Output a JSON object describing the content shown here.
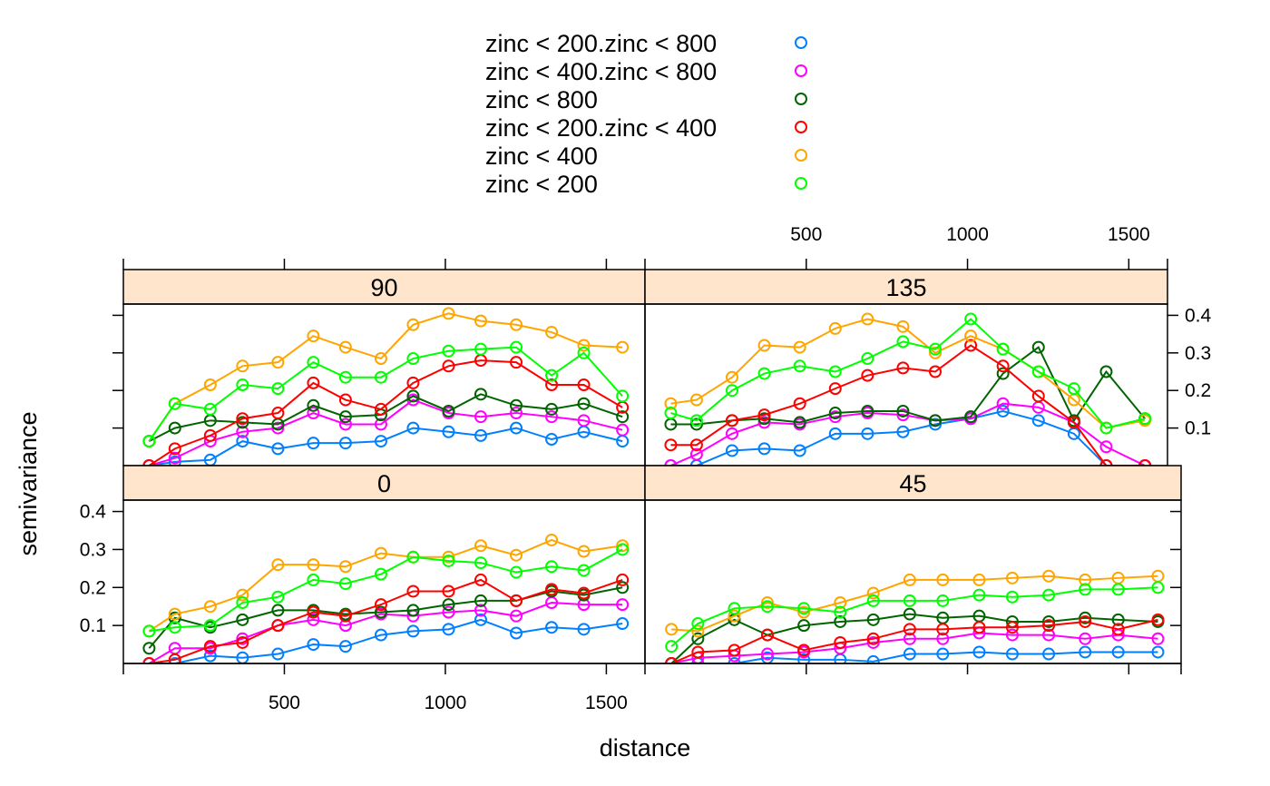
{
  "chart_data": {
    "type": "line",
    "xlabel": "distance",
    "ylabel": "semivariance",
    "xlim": [
      0,
      1620
    ],
    "ylim": [
      0,
      0.43
    ],
    "x_ticks": [
      500,
      1000,
      1500
    ],
    "y_ticks": [
      0.1,
      0.2,
      0.3,
      0.4
    ],
    "grid": false,
    "legend_position": "top",
    "series_style": [
      {
        "name": "zinc < 200.zinc < 800",
        "color": "#0080ff"
      },
      {
        "name": "zinc < 400.zinc < 800",
        "color": "#ff00ff"
      },
      {
        "name": "zinc < 800",
        "color": "#006400"
      },
      {
        "name": "zinc < 200.zinc < 400",
        "color": "#ff0000"
      },
      {
        "name": "zinc < 400",
        "color": "#ffa500"
      },
      {
        "name": "zinc < 200",
        "color": "#00ff00"
      }
    ],
    "panels": [
      {
        "label": "90",
        "x": [
          80,
          160,
          270,
          370,
          480,
          590,
          690,
          800,
          900,
          1010,
          1110,
          1220,
          1330,
          1430,
          1550
        ],
        "series": [
          {
            "name": "zinc < 200.zinc < 800",
            "values": [
              0.0,
              0.01,
              0.015,
              0.065,
              0.045,
              0.06,
              0.06,
              0.065,
              0.1,
              0.09,
              0.08,
              0.1,
              0.07,
              0.09,
              0.065
            ]
          },
          {
            "name": "zinc < 400.zinc < 800",
            "values": [
              0.0,
              0.02,
              0.065,
              0.09,
              0.1,
              0.14,
              0.11,
              0.11,
              0.175,
              0.14,
              0.13,
              0.14,
              0.13,
              0.12,
              0.095
            ]
          },
          {
            "name": "zinc < 800",
            "values": [
              0.065,
              0.1,
              0.12,
              0.115,
              0.11,
              0.16,
              0.13,
              0.135,
              0.185,
              0.145,
              0.19,
              0.16,
              0.15,
              0.165,
              0.13
            ]
          },
          {
            "name": "zinc < 200.zinc < 400",
            "values": [
              0.0,
              0.045,
              0.08,
              0.125,
              0.14,
              0.22,
              0.175,
              0.15,
              0.22,
              0.265,
              0.28,
              0.275,
              0.215,
              0.215,
              0.155
            ]
          },
          {
            "name": "zinc < 400",
            "values": [
              0.065,
              0.165,
              0.215,
              0.265,
              0.275,
              0.345,
              0.315,
              0.285,
              0.375,
              0.405,
              0.385,
              0.375,
              0.355,
              0.32,
              0.315
            ]
          },
          {
            "name": "zinc < 200",
            "values": [
              0.065,
              0.165,
              0.15,
              0.215,
              0.205,
              0.275,
              0.235,
              0.235,
              0.285,
              0.305,
              0.31,
              0.315,
              0.24,
              0.3,
              0.185
            ]
          }
        ]
      },
      {
        "label": "135",
        "x": [
          80,
          160,
          270,
          370,
          480,
          590,
          690,
          800,
          900,
          1010,
          1110,
          1220,
          1330,
          1430,
          1550
        ],
        "series": [
          {
            "name": "zinc < 200.zinc < 800",
            "values": [
              0.0,
              0.0,
              0.04,
              0.045,
              0.04,
              0.085,
              0.085,
              0.09,
              0.11,
              0.125,
              0.145,
              0.12,
              0.085,
              0.0,
              0.0
            ]
          },
          {
            "name": "zinc < 400.zinc < 800",
            "values": [
              0.0,
              0.03,
              0.085,
              0.115,
              0.11,
              0.13,
              0.14,
              0.135,
              0.12,
              0.125,
              0.165,
              0.155,
              0.115,
              0.05,
              0.0
            ]
          },
          {
            "name": "zinc < 800",
            "values": [
              0.11,
              0.11,
              0.12,
              0.125,
              0.115,
              0.14,
              0.145,
              0.145,
              0.12,
              0.13,
              0.245,
              0.315,
              0.12,
              0.25,
              0.125
            ]
          },
          {
            "name": "zinc < 200.zinc < 400",
            "values": [
              0.055,
              0.055,
              0.12,
              0.135,
              0.165,
              0.205,
              0.24,
              0.26,
              0.25,
              0.32,
              0.265,
              0.185,
              0.115,
              0.0,
              0.0
            ]
          },
          {
            "name": "zinc < 400",
            "values": [
              0.165,
              0.175,
              0.235,
              0.32,
              0.315,
              0.365,
              0.39,
              0.37,
              0.3,
              0.345,
              0.31,
              0.25,
              0.175,
              0.1,
              0.12
            ]
          },
          {
            "name": "zinc < 200",
            "values": [
              0.14,
              0.12,
              0.2,
              0.245,
              0.265,
              0.25,
              0.285,
              0.33,
              0.31,
              0.39,
              0.31,
              0.25,
              0.205,
              0.1,
              0.125
            ]
          }
        ]
      },
      {
        "label": "0",
        "x": [
          80,
          160,
          270,
          370,
          480,
          590,
          690,
          800,
          900,
          1010,
          1110,
          1220,
          1330,
          1430,
          1550
        ],
        "series": [
          {
            "name": "zinc < 200.zinc < 800",
            "values": [
              0.0,
              0.0,
              0.02,
              0.015,
              0.025,
              0.05,
              0.045,
              0.075,
              0.085,
              0.09,
              0.115,
              0.08,
              0.095,
              0.09,
              0.105
            ]
          },
          {
            "name": "zinc < 400.zinc < 800",
            "values": [
              0.0,
              0.04,
              0.04,
              0.065,
              0.1,
              0.115,
              0.1,
              0.13,
              0.125,
              0.135,
              0.14,
              0.125,
              0.16,
              0.155,
              0.155
            ]
          },
          {
            "name": "zinc < 800",
            "values": [
              0.04,
              0.12,
              0.095,
              0.115,
              0.14,
              0.14,
              0.13,
              0.135,
              0.14,
              0.155,
              0.165,
              0.165,
              0.19,
              0.18,
              0.2
            ]
          },
          {
            "name": "zinc < 200.zinc < 400",
            "values": [
              0.0,
              0.01,
              0.045,
              0.055,
              0.1,
              0.135,
              0.125,
              0.155,
              0.19,
              0.19,
              0.22,
              0.165,
              0.195,
              0.185,
              0.22
            ]
          },
          {
            "name": "zinc < 400",
            "values": [
              0.085,
              0.13,
              0.15,
              0.18,
              0.26,
              0.26,
              0.255,
              0.29,
              0.28,
              0.28,
              0.31,
              0.285,
              0.325,
              0.295,
              0.31
            ]
          },
          {
            "name": "zinc < 200",
            "values": [
              0.085,
              0.095,
              0.1,
              0.16,
              0.175,
              0.22,
              0.21,
              0.235,
              0.28,
              0.27,
              0.265,
              0.24,
              0.255,
              0.245,
              0.3
            ]
          }
        ]
      },
      {
        "label": "45",
        "x": [
          80,
          160,
          270,
          370,
          480,
          590,
          690,
          800,
          900,
          1010,
          1110,
          1220,
          1330,
          1430,
          1550
        ],
        "series": [
          {
            "name": "zinc < 200.zinc < 800",
            "values": [
              0.0,
              0.0,
              0.0,
              0.015,
              0.01,
              0.01,
              0.005,
              0.025,
              0.025,
              0.03,
              0.025,
              0.025,
              0.03,
              0.03,
              0.03
            ]
          },
          {
            "name": "zinc < 400.zinc < 800",
            "values": [
              0.0,
              0.015,
              0.02,
              0.025,
              0.03,
              0.04,
              0.055,
              0.065,
              0.065,
              0.08,
              0.075,
              0.075,
              0.065,
              0.075,
              0.065
            ]
          },
          {
            "name": "zinc < 800",
            "values": [
              0.0,
              0.065,
              0.115,
              0.075,
              0.1,
              0.11,
              0.115,
              0.13,
              0.12,
              0.125,
              0.11,
              0.11,
              0.12,
              0.115,
              0.11
            ]
          },
          {
            "name": "zinc < 200.zinc < 400",
            "values": [
              0.0,
              0.03,
              0.035,
              0.075,
              0.035,
              0.055,
              0.065,
              0.09,
              0.09,
              0.095,
              0.095,
              0.1,
              0.11,
              0.09,
              0.115
            ]
          },
          {
            "name": "zinc < 400",
            "values": [
              0.09,
              0.085,
              0.125,
              0.16,
              0.135,
              0.16,
              0.185,
              0.22,
              0.22,
              0.22,
              0.225,
              0.23,
              0.22,
              0.225,
              0.23
            ]
          },
          {
            "name": "zinc < 200",
            "values": [
              0.045,
              0.105,
              0.145,
              0.15,
              0.145,
              0.135,
              0.165,
              0.165,
              0.165,
              0.18,
              0.175,
              0.18,
              0.195,
              0.195,
              0.2
            ]
          }
        ]
      }
    ]
  }
}
